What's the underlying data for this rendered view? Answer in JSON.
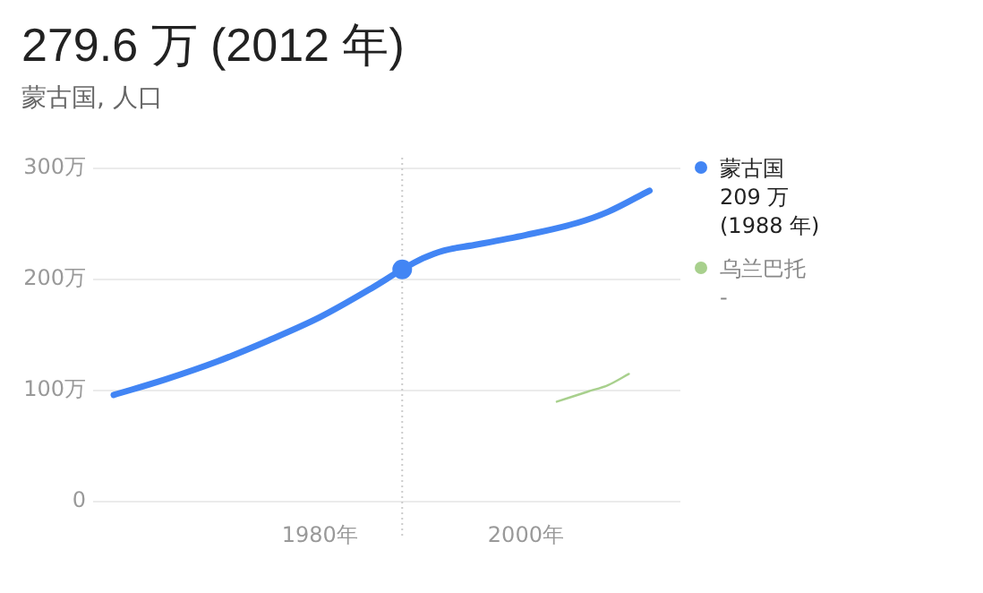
{
  "chart_data": {
    "type": "line",
    "title": "279.6 万 (2012 年)",
    "subtitle": "蒙古国, 人口",
    "series": [
      {
        "name": "蒙古国",
        "color": "#4285f4",
        "x": [
          1960,
          1965,
          1970,
          1975,
          1980,
          1985,
          1988,
          1990,
          1992,
          1995,
          2000,
          2005,
          2008,
          2012
        ],
        "values": [
          96,
          110,
          126,
          145,
          166,
          192,
          209,
          219,
          226,
          231,
          240,
          251,
          261,
          280
        ]
      },
      {
        "name": "乌兰巴托",
        "color": "#a8d08d",
        "x": [
          2003,
          2006,
          2008,
          2010
        ],
        "values": [
          90,
          99,
          105,
          115
        ]
      }
    ],
    "xlim": [
      1958,
      2015
    ],
    "ylim": [
      0,
      300
    ],
    "xticks": [
      {
        "value": 1980,
        "label": "1980年"
      },
      {
        "value": 2000,
        "label": "2000年"
      }
    ],
    "yticks": [
      0,
      {
        "value": 100,
        "label": "100万"
      },
      {
        "value": 200,
        "label": "200万"
      },
      {
        "value": 300,
        "label": "300万"
      }
    ],
    "grid": "y",
    "legend": "right",
    "marker": "none",
    "line_style": "solid",
    "ref_lines": [
      {
        "axis": "x",
        "value": 1988,
        "line_style": "dotted",
        "color": "#cccccc"
      }
    ],
    "annotations": [
      "209 万",
      "(1988 年)",
      "-"
    ]
  }
}
